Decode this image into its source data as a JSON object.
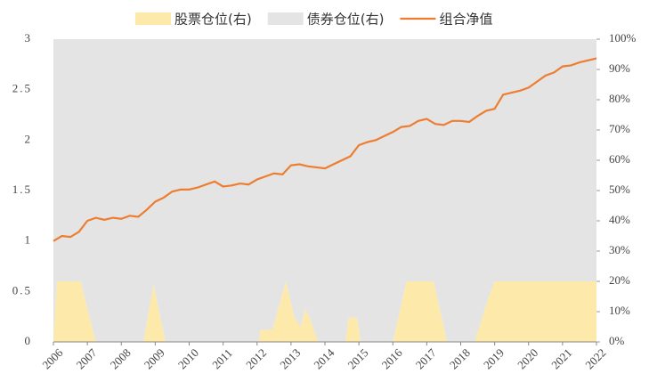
{
  "chart_data": {
    "type": "line",
    "xlim": [
      2006,
      2022
    ],
    "xticks": [
      2006,
      2007,
      2008,
      2009,
      2010,
      2011,
      2012,
      2013,
      2014,
      2015,
      2016,
      2017,
      2018,
      2019,
      2020,
      2021,
      2022
    ],
    "ylim": [
      0,
      3
    ],
    "yticks": [
      0,
      0.5,
      1,
      1.5,
      2,
      2.5,
      3
    ],
    "y2lim": [
      0,
      100
    ],
    "y2ticks": [
      {
        "value": 0,
        "label": "0%"
      },
      {
        "value": 10,
        "label": "10%"
      },
      {
        "value": 20,
        "label": "20%"
      },
      {
        "value": 30,
        "label": "30%"
      },
      {
        "value": 40,
        "label": "40%"
      },
      {
        "value": 50,
        "label": "50%"
      },
      {
        "value": 60,
        "label": "60%"
      },
      {
        "value": 70,
        "label": "70%"
      },
      {
        "value": 80,
        "label": "80%"
      },
      {
        "value": 90,
        "label": "90%"
      },
      {
        "value": 100,
        "label": "100%"
      }
    ],
    "legend": "top",
    "series": [
      {
        "name": "股票仓位(右)",
        "color": "#fde9a9",
        "type": "area",
        "axis": "y2",
        "x": [
          2006.0,
          2006.1,
          2006.8,
          2007.25,
          2008.65,
          2008.95,
          2009.3,
          2012.05,
          2012.1,
          2012.4,
          2012.45,
          2012.85,
          2013.1,
          2013.3,
          2013.4,
          2013.55,
          2013.8,
          2014.6,
          2014.7,
          2014.95,
          2015.05,
          2016.0,
          2016.4,
          2017.2,
          2017.6,
          2018.4,
          2018.55,
          2018.8,
          2019.0,
          2022.0
        ],
        "values": [
          0,
          20,
          20,
          0,
          0,
          19,
          0,
          0,
          4,
          4,
          4,
          20,
          8,
          5,
          11,
          8,
          0,
          0,
          8,
          8,
          0,
          0,
          20,
          20,
          0,
          0,
          5,
          14,
          20,
          20
        ]
      },
      {
        "name": "债券仓位(右)",
        "color": "#e4e4e4",
        "type": "area",
        "axis": "y2",
        "x": [
          2006.0,
          2006.1,
          2006.8,
          2007.25,
          2008.65,
          2008.95,
          2009.3,
          2012.05,
          2012.1,
          2012.4,
          2012.45,
          2012.85,
          2013.1,
          2013.3,
          2013.4,
          2013.55,
          2013.8,
          2014.6,
          2014.7,
          2014.95,
          2015.05,
          2016.0,
          2016.4,
          2017.2,
          2017.6,
          2018.4,
          2018.55,
          2018.8,
          2019.0,
          2022.0
        ],
        "values": [
          100,
          80,
          80,
          100,
          100,
          81,
          100,
          100,
          96,
          96,
          96,
          80,
          92,
          95,
          89,
          92,
          100,
          100,
          92,
          92,
          100,
          100,
          80,
          80,
          100,
          100,
          95,
          86,
          80,
          80
        ]
      },
      {
        "name": "组合净值",
        "color": "#ed7d31",
        "type": "line",
        "x": [
          2006.0,
          2006.25,
          2006.5,
          2006.75,
          2007.0,
          2007.25,
          2007.5,
          2007.75,
          2008.0,
          2008.25,
          2008.5,
          2008.75,
          2009.0,
          2009.25,
          2009.5,
          2009.75,
          2010.0,
          2010.25,
          2010.5,
          2010.75,
          2011.0,
          2011.25,
          2011.5,
          2011.75,
          2012.0,
          2012.25,
          2012.5,
          2012.75,
          2013.0,
          2013.25,
          2013.5,
          2013.75,
          2014.0,
          2014.25,
          2014.5,
          2014.75,
          2015.0,
          2015.25,
          2015.5,
          2015.75,
          2016.0,
          2016.25,
          2016.5,
          2016.75,
          2017.0,
          2017.25,
          2017.5,
          2017.75,
          2018.0,
          2018.25,
          2018.5,
          2018.75,
          2019.0,
          2019.25,
          2019.5,
          2019.75,
          2020.0,
          2020.25,
          2020.5,
          2020.75,
          2021.0,
          2021.25,
          2021.5,
          2021.75,
          2022.0
        ],
        "values": [
          1.0,
          1.05,
          1.04,
          1.09,
          1.2,
          1.23,
          1.21,
          1.23,
          1.22,
          1.25,
          1.24,
          1.31,
          1.39,
          1.43,
          1.49,
          1.51,
          1.51,
          1.53,
          1.56,
          1.59,
          1.54,
          1.55,
          1.57,
          1.56,
          1.61,
          1.64,
          1.67,
          1.66,
          1.75,
          1.76,
          1.74,
          1.73,
          1.72,
          1.76,
          1.8,
          1.84,
          1.95,
          1.98,
          2.0,
          2.04,
          2.08,
          2.13,
          2.14,
          2.19,
          2.21,
          2.16,
          2.15,
          2.19,
          2.19,
          2.18,
          2.24,
          2.29,
          2.31,
          2.45,
          2.47,
          2.49,
          2.52,
          2.58,
          2.64,
          2.67,
          2.73,
          2.74,
          2.77,
          2.79,
          2.81
        ]
      }
    ]
  }
}
